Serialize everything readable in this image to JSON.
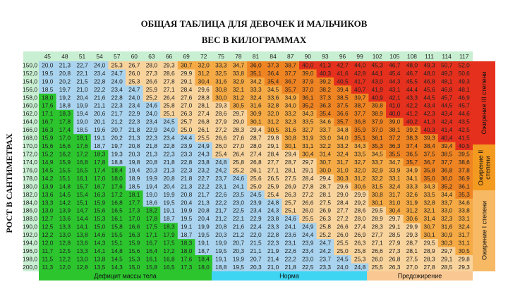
{
  "title": "ОБЩАЯ ТАБЛИЦА ДЛЯ ДЕВОЧЕК И МАЛЬЧИКОВ",
  "subtitle": "ВЕС В КИЛОГРАММАХ",
  "y_axis_label": "РОСТ В САНТИМЕТРАХ",
  "table": {
    "weights": [
      45,
      48,
      51,
      54,
      57,
      60,
      63,
      66,
      69,
      72,
      75,
      78,
      81,
      84,
      87,
      90,
      93,
      96,
      99,
      102,
      105,
      108,
      111,
      114,
      117
    ],
    "heights": [
      "150,0",
      "152,0",
      "154,0",
      "156,0",
      "158,0",
      "160,0",
      "162,0",
      "164,0",
      "166,0",
      "168,0",
      "170,0",
      "172,0",
      "174,0",
      "176,0",
      "178,0",
      "180,0",
      "182,0",
      "184,0",
      "186,0",
      "188,0",
      "190,0",
      "192,0",
      "194,0",
      "196,0",
      "198,0",
      "200,0"
    ],
    "rows": [
      [
        "20,0",
        "21,3",
        "22,7",
        "24,0",
        "25,3",
        "26,7",
        "28,0",
        "29,3",
        "30,7",
        "32,0",
        "33,3",
        "34,7",
        "36,0",
        "37,3",
        "38,7",
        "40,0",
        "41,3",
        "42,7",
        "44,0",
        "45,3",
        "46,7",
        "48,0",
        "49,3",
        "50,7",
        "52,0"
      ],
      [
        "19,5",
        "20,8",
        "22,1",
        "23,4",
        "24,7",
        "26,0",
        "27,3",
        "28,6",
        "29,9",
        "31,2",
        "32,5",
        "33,8",
        "35,1",
        "36,4",
        "37,7",
        "39,0",
        "40,3",
        "41,6",
        "42,8",
        "44,1",
        "45,4",
        "46,7",
        "48,0",
        "49,3",
        "50,6"
      ],
      [
        "19,0",
        "20,2",
        "21,5",
        "22,8",
        "24,0",
        "25,3",
        "26,6",
        "27,8",
        "29,1",
        "30,4",
        "31,6",
        "32,9",
        "34,2",
        "35,4",
        "36,7",
        "37,9",
        "39,2",
        "40,5",
        "41,7",
        "43,0",
        "44,3",
        "45,5",
        "46,8",
        "48,1",
        "49,3"
      ],
      [
        "18,5",
        "19,7",
        "21,0",
        "22,2",
        "23,4",
        "24,7",
        "25,9",
        "27,1",
        "28,4",
        "29,6",
        "30,8",
        "32,1",
        "33,3",
        "34,5",
        "35,7",
        "37,0",
        "38,2",
        "39,4",
        "40,7",
        "41,9",
        "43,1",
        "44,4",
        "45,6",
        "46,8",
        "48,1"
      ],
      [
        "18,0",
        "19,2",
        "20,4",
        "21,6",
        "22,8",
        "24,0",
        "25,2",
        "26,4",
        "27,6",
        "28,8",
        "30,0",
        "31,2",
        "32,4",
        "33,6",
        "34,9",
        "36,1",
        "37,3",
        "38,5",
        "39,7",
        "40,9",
        "42,1",
        "43,3",
        "44,5",
        "45,7",
        "46,9"
      ],
      [
        "17,6",
        "18,8",
        "19,9",
        "21,1",
        "22,3",
        "23,4",
        "24,6",
        "25,8",
        "27,0",
        "28,1",
        "29,3",
        "30,5",
        "31,6",
        "32,8",
        "34,0",
        "35,2",
        "36,3",
        "37,5",
        "38,7",
        "39,8",
        "41,0",
        "42,2",
        "43,4",
        "44,5",
        "45,7"
      ],
      [
        "17,1",
        "18,3",
        "19,4",
        "20,6",
        "21,7",
        "22,9",
        "24,0",
        "25,1",
        "26,3",
        "27,4",
        "28,6",
        "29,7",
        "30,9",
        "32,0",
        "33,2",
        "34,3",
        "35,4",
        "36,6",
        "37,7",
        "38,9",
        "40,0",
        "41,2",
        "42,3",
        "43,4",
        "44,6"
      ],
      [
        "16,7",
        "17,8",
        "19,0",
        "20,1",
        "21,2",
        "22,3",
        "23,4",
        "24,5",
        "25,7",
        "26,8",
        "27,9",
        "29,0",
        "30,1",
        "31,2",
        "32,3",
        "33,5",
        "34,6",
        "35,7",
        "36,8",
        "37,9",
        "39,0",
        "40,2",
        "41,3",
        "42,4",
        "43,5"
      ],
      [
        "16,3",
        "17,4",
        "18,5",
        "19,6",
        "20,7",
        "21,8",
        "22,9",
        "24,0",
        "25,0",
        "26,1",
        "27,2",
        "28,3",
        "29,4",
        "30,5",
        "31,6",
        "32,7",
        "33,7",
        "34,8",
        "35,9",
        "37,0",
        "38,1",
        "39,2",
        "40,3",
        "41,4",
        "42,5"
      ],
      [
        "15,9",
        "17,0",
        "18,1",
        "19,1",
        "20,2",
        "21,3",
        "22,3",
        "23,4",
        "24,4",
        "25,5",
        "26,6",
        "27,6",
        "28,7",
        "29,8",
        "30,8",
        "31,9",
        "33,0",
        "34,0",
        "35,1",
        "36,1",
        "37,2",
        "38,3",
        "39,3",
        "40,4",
        "41,5"
      ],
      [
        "15,6",
        "16,6",
        "17,6",
        "18,7",
        "19,7",
        "20,8",
        "21,8",
        "22,8",
        "23,9",
        "24,9",
        "26,0",
        "27,0",
        "28,0",
        "29,1",
        "30,1",
        "31,1",
        "32,2",
        "33,2",
        "34,3",
        "35,3",
        "36,3",
        "37,4",
        "38,4",
        "39,4",
        "40,5"
      ],
      [
        "15,2",
        "16,2",
        "17,2",
        "18,3",
        "19,3",
        "20,3",
        "21,3",
        "22,3",
        "23,3",
        "24,3",
        "25,4",
        "26,4",
        "27,4",
        "28,4",
        "29,4",
        "30,4",
        "31,4",
        "32,4",
        "33,5",
        "34,5",
        "35,5",
        "36,5",
        "37,5",
        "38,5",
        "39,5"
      ],
      [
        "14,9",
        "15,9",
        "16,8",
        "17,8",
        "18,8",
        "19,8",
        "20,8",
        "21,8",
        "22,8",
        "23,8",
        "24,8",
        "25,8",
        "26,8",
        "27,7",
        "28,7",
        "29,7",
        "30,7",
        "31,7",
        "32,7",
        "33,7",
        "34,7",
        "35,7",
        "36,7",
        "37,7",
        "38,6"
      ],
      [
        "14,5",
        "15,5",
        "16,5",
        "17,4",
        "18,4",
        "19,4",
        "20,3",
        "21,3",
        "22,3",
        "23,2",
        "24,2",
        "25,2",
        "26,1",
        "27,1",
        "28,1",
        "29,1",
        "30,0",
        "31,0",
        "32,0",
        "32,9",
        "33,9",
        "34,9",
        "35,8",
        "36,8",
        "37,8"
      ],
      [
        "14,2",
        "15,1",
        "16,1",
        "17,0",
        "18,0",
        "18,9",
        "19,9",
        "20,8",
        "21,8",
        "22,7",
        "23,7",
        "24,6",
        "25,6",
        "26,5",
        "27,5",
        "28,4",
        "29,4",
        "30,3",
        "31,2",
        "32,2",
        "33,1",
        "34,1",
        "35,0",
        "36,0",
        "36,9"
      ],
      [
        "13,9",
        "14,8",
        "15,7",
        "16,7",
        "17,6",
        "18,5",
        "19,4",
        "20,4",
        "21,3",
        "22,2",
        "23,1",
        "24,1",
        "25,0",
        "25,9",
        "26,9",
        "27,8",
        "28,7",
        "29,6",
        "30,6",
        "31,5",
        "32,4",
        "33,3",
        "34,3",
        "35,2",
        "36,1"
      ],
      [
        "13,6",
        "14,5",
        "15,4",
        "16,3",
        "17,2",
        "18,1",
        "19,0",
        "19,9",
        "20,8",
        "21,7",
        "22,6",
        "23,5",
        "24,5",
        "25,4",
        "26,3",
        "27,2",
        "28,1",
        "29,0",
        "29,9",
        "30,8",
        "31,7",
        "32,6",
        "33,5",
        "34,4",
        "35,3"
      ],
      [
        "13,3",
        "14,2",
        "15,1",
        "15,9",
        "16,8",
        "17,7",
        "18,6",
        "19,5",
        "20,4",
        "21,3",
        "22,2",
        "23,0",
        "23,9",
        "24,8",
        "25,7",
        "26,6",
        "27,5",
        "28,4",
        "29,2",
        "30,1",
        "31,0",
        "31,9",
        "32,8",
        "33,7",
        "34,6"
      ],
      [
        "13,0",
        "13,9",
        "14,7",
        "15,6",
        "16,5",
        "17,3",
        "18,2",
        "19,1",
        "19,9",
        "20,8",
        "21,7",
        "22,5",
        "23,4",
        "24,3",
        "25,1",
        "26,0",
        "26,9",
        "27,7",
        "28,6",
        "29,5",
        "30,4",
        "31,2",
        "32,1",
        "33,0",
        "33,8"
      ],
      [
        "12,7",
        "13,6",
        "14,4",
        "15,3",
        "16,1",
        "17,0",
        "17,8",
        "18,7",
        "19,5",
        "20,4",
        "21,2",
        "22,1",
        "22,9",
        "23,8",
        "24,6",
        "25,5",
        "26,3",
        "27,2",
        "28,0",
        "28,9",
        "29,7",
        "30,6",
        "31,4",
        "32,3",
        "33,1"
      ],
      [
        "12,5",
        "13,3",
        "14,1",
        "15,0",
        "15,8",
        "16,6",
        "17,5",
        "18,3",
        "19,1",
        "19,9",
        "20,8",
        "21,6",
        "22,4",
        "23,3",
        "24,1",
        "24,9",
        "25,8",
        "26,6",
        "27,4",
        "28,3",
        "29,1",
        "29,9",
        "30,7",
        "31,6",
        "32,4"
      ],
      [
        "12,2",
        "13,0",
        "13,8",
        "14,6",
        "15,5",
        "16,3",
        "17,1",
        "17,9",
        "18,7",
        "19,5",
        "20,3",
        "21,2",
        "22,0",
        "22,8",
        "23,6",
        "24,4",
        "25,2",
        "26,0",
        "26,9",
        "27,7",
        "28,5",
        "29,3",
        "30,1",
        "30,9",
        "31,7"
      ],
      [
        "12,0",
        "12,8",
        "13,6",
        "14,3",
        "15,1",
        "15,9",
        "16,7",
        "17,5",
        "18,3",
        "19,1",
        "19,9",
        "20,7",
        "21,5",
        "22,3",
        "23,1",
        "23,9",
        "24,7",
        "25,5",
        "26,3",
        "27,1",
        "27,9",
        "28,7",
        "29,5",
        "30,3",
        "31,1"
      ],
      [
        "11,7",
        "12,5",
        "13,3",
        "14,1",
        "14,8",
        "15,6",
        "16,4",
        "17,2",
        "18,0",
        "18,7",
        "19,5",
        "20,3",
        "21,1",
        "21,9",
        "22,6",
        "23,4",
        "24,2",
        "25,0",
        "25,8",
        "26,6",
        "27,3",
        "28,1",
        "28,9",
        "29,7",
        "30,5"
      ],
      [
        "11,5",
        "12,2",
        "13,0",
        "13,8",
        "14,5",
        "15,3",
        "16,1",
        "16,8",
        "17,6",
        "18,4",
        "19,1",
        "19,9",
        "20,7",
        "21,4",
        "22,2",
        "23,0",
        "23,7",
        "24,5",
        "25,3",
        "26,0",
        "26,8",
        "27,5",
        "28,3",
        "29,1",
        "29,8"
      ],
      [
        "11,3",
        "12,0",
        "12,8",
        "13,5",
        "14,3",
        "15,0",
        "15,8",
        "16,5",
        "17,3",
        "18,0",
        "18,8",
        "19,5",
        "20,3",
        "21,0",
        "21,8",
        "22,5",
        "23,3",
        "24,0",
        "24,8",
        "25,5",
        "26,3",
        "27,0",
        "27,8",
        "28,5",
        "29,3"
      ]
    ]
  },
  "legend_bottom": [
    "Дефицит массы тела",
    "Норма",
    "Предожирение"
  ],
  "legend_side": [
    "Ожирение III степени",
    "Ожирение II степени",
    "Ожирение I степени"
  ]
}
